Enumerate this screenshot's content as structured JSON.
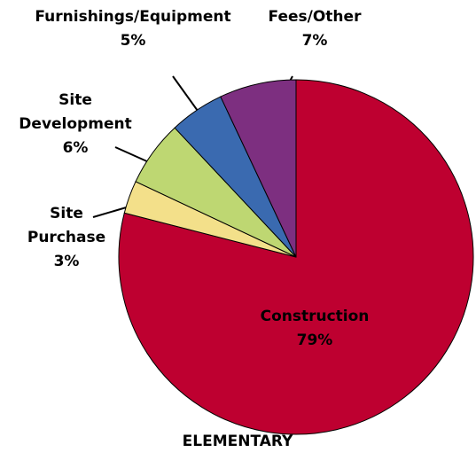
{
  "chart_data": {
    "type": "pie",
    "title": "ELEMENTARY",
    "categories": [
      "Construction",
      "Site Purchase",
      "Site Development",
      "Furnishings/Equipment",
      "Fees/Other"
    ],
    "values": [
      79,
      3,
      6,
      5,
      7
    ],
    "value_labels": [
      "79%",
      "3%",
      "6%",
      "5%",
      "7%"
    ],
    "colors": [
      "#be0030",
      "#f3e08a",
      "#bed772",
      "#3a6ab0",
      "#7d2f80"
    ]
  }
}
